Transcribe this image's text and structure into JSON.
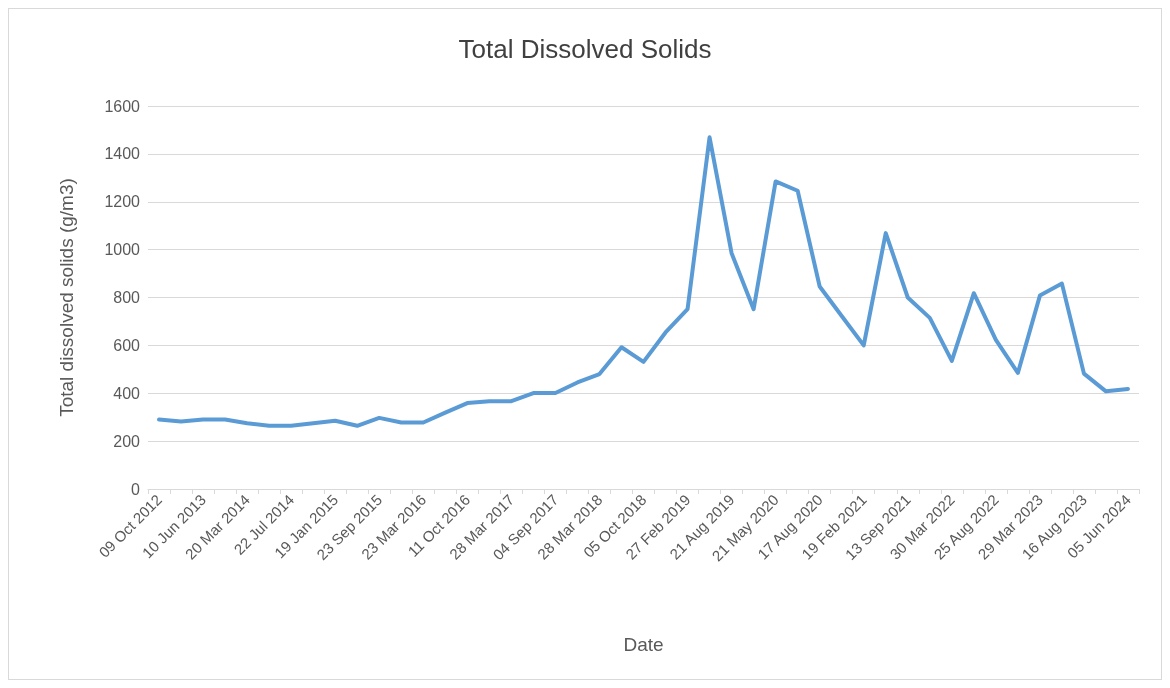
{
  "chart_data": {
    "type": "line",
    "title": "Total Dissolved Solids",
    "xlabel": "Date",
    "ylabel": "Total dissolved solids (g/m3)",
    "categories": [
      "09 Oct 2012",
      null,
      "10 Jun 2013",
      null,
      "20 Mar 2014",
      null,
      "22 Jul 2014",
      null,
      "19 Jan 2015",
      null,
      "23 Sep 2015",
      null,
      "23 Mar 2016",
      null,
      "11 Oct 2016",
      null,
      "28 Mar 2017",
      null,
      "04 Sep 2017",
      null,
      "28 Mar 2018",
      null,
      "05 Oct 2018",
      null,
      "27 Feb 2019",
      null,
      "21 Aug 2019",
      null,
      "21 May 2020",
      null,
      "17 Aug 2020",
      null,
      "19 Feb 2021",
      null,
      "13 Sep 2021",
      null,
      "30 Mar 2022",
      null,
      "25 Aug 2022",
      null,
      "29 Mar 2023",
      null,
      "16 Aug 2023",
      null,
      "05 Jun 2024"
    ],
    "series": [
      {
        "color": "#5b9bd5",
        "values": [
          290,
          282,
          290,
          290,
          275,
          264,
          264,
          275,
          285,
          264,
          297,
          278,
          278,
          319,
          359,
          367,
          367,
          401,
          401,
          445,
          480,
          592,
          531,
          654,
          751,
          1469,
          985,
          751,
          1285,
          1246,
          846,
          723,
          600,
          1069,
          800,
          715,
          535,
          818,
          623,
          485,
          808,
          858,
          482,
          408,
          418
        ]
      }
    ],
    "ylim": [
      0,
      1600
    ],
    "yticks": [
      0,
      200,
      400,
      600,
      800,
      1000,
      1200,
      1400,
      1600
    ],
    "grid": "y",
    "marker": "none",
    "line_style": "solid"
  }
}
